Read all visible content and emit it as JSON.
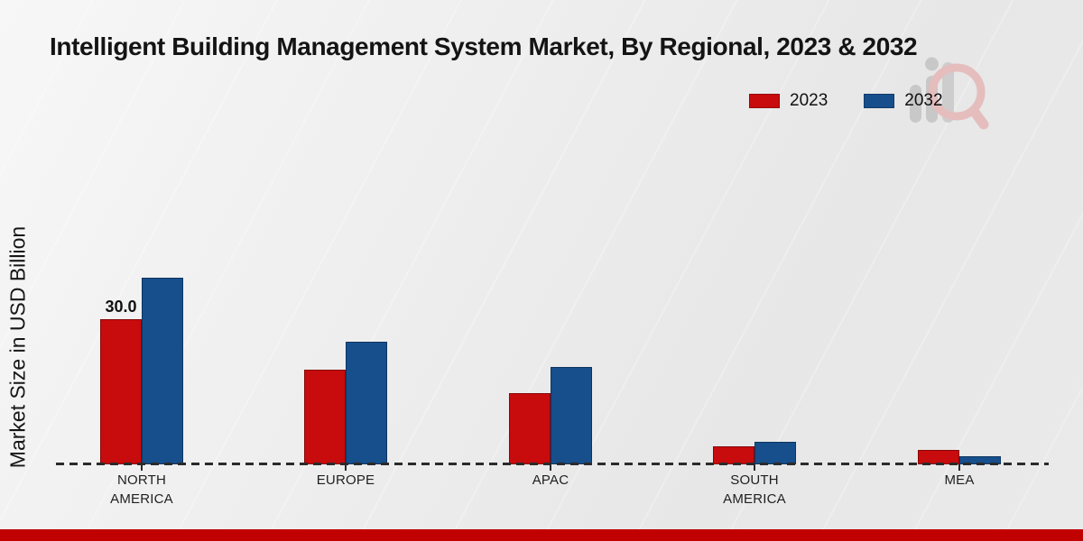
{
  "title": "Intelligent Building Management System Market, By Regional, 2023 & 2032",
  "ylabel": "Market Size in USD Billion",
  "legend": [
    {
      "label": "2023",
      "color": "#c80b0d"
    },
    {
      "label": "2032",
      "color": "#164f8c"
    }
  ],
  "footer_color": "#c10000",
  "watermark_icon": "market-research-logo-watermark",
  "chart_data": {
    "type": "bar",
    "title": "Intelligent Building Management System Market, By Regional, 2023 & 2032",
    "xlabel": "",
    "ylabel": "Market Size in USD Billion",
    "categories": [
      "NORTH AMERICA",
      "EUROPE",
      "APAC",
      "SOUTH AMERICA",
      "MEA"
    ],
    "series": [
      {
        "name": "2023",
        "color": "#c80b0d",
        "values": [
          30.0,
          19.7,
          14.8,
          3.7,
          3.0
        ],
        "data_labels": [
          "30.0",
          "",
          "",
          "",
          ""
        ]
      },
      {
        "name": "2032",
        "color": "#164f8c",
        "values": [
          38.7,
          25.4,
          20.2,
          4.7,
          1.6
        ],
        "data_labels": [
          "",
          "",
          "",
          "",
          ""
        ]
      }
    ],
    "ylim": [
      0,
      45
    ],
    "grid": false,
    "legend_position": "top-right",
    "axis_style": "dashed-baseline-only"
  }
}
